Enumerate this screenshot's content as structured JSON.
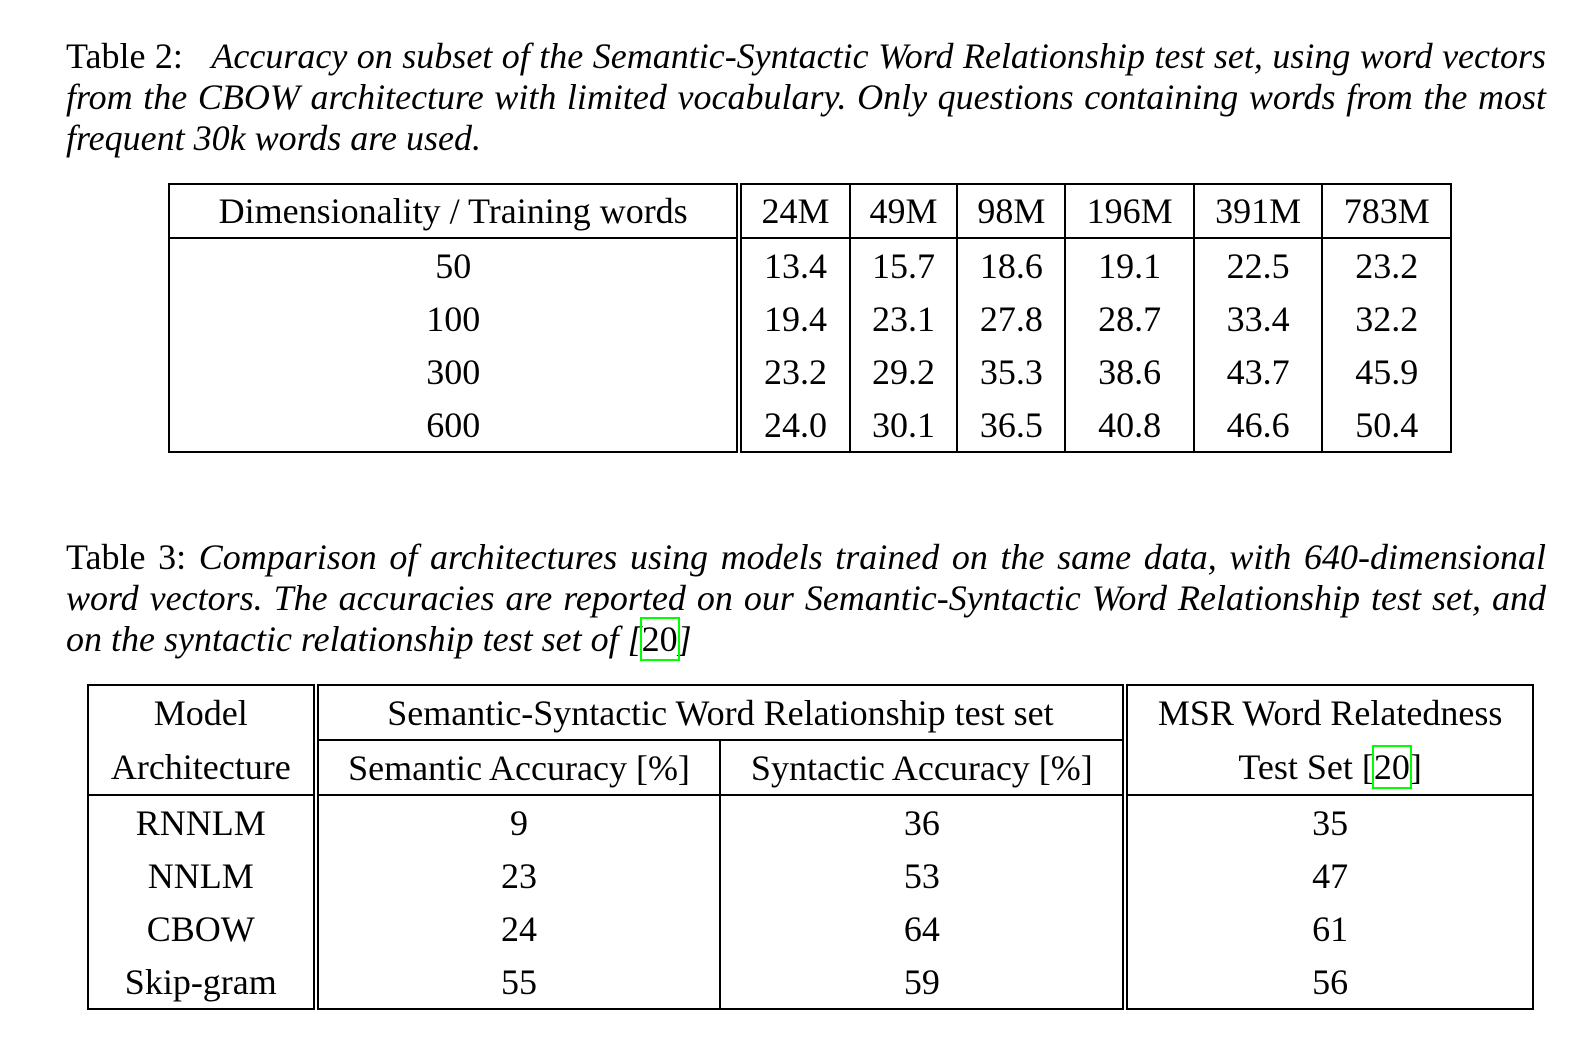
{
  "table2": {
    "caption_label": "Table 2:",
    "caption_text": "Accuracy on subset of the Semantic-Syntactic Word Relationship test set, using word vectors from the CBOW architecture with limited vocabulary. Only questions containing words from the most frequent 30k words are used.",
    "header": [
      "Dimensionality / Training words",
      "24M",
      "49M",
      "98M",
      "196M",
      "391M",
      "783M"
    ],
    "rows": [
      [
        "50",
        "13.4",
        "15.7",
        "18.6",
        "19.1",
        "22.5",
        "23.2"
      ],
      [
        "100",
        "19.4",
        "23.1",
        "27.8",
        "28.7",
        "33.4",
        "32.2"
      ],
      [
        "300",
        "23.2",
        "29.2",
        "35.3",
        "38.6",
        "43.7",
        "45.9"
      ],
      [
        "600",
        "24.0",
        "30.1",
        "36.5",
        "40.8",
        "46.6",
        "50.4"
      ]
    ]
  },
  "table3": {
    "caption_label": "Table 3:",
    "caption_text_before": "Comparison of architectures using models trained on the same data, with 640-dimensional word vectors. The accuracies are reported on our Semantic-Syntactic Word Relationship test set, and on the syntactic relationship test set of [",
    "caption_cite": "20",
    "caption_text_after": "]",
    "header": {
      "model_line1": "Model",
      "model_line2": "Architecture",
      "group": "Semantic-Syntactic Word Relationship test set",
      "semantic": "Semantic Accuracy [%]",
      "syntactic": "Syntactic Accuracy [%]",
      "msr_line1": "MSR Word Relatedness",
      "msr_line2_before": "Test Set [",
      "msr_cite": "20",
      "msr_line2_after": "]"
    },
    "rows": [
      [
        "RNNLM",
        "9",
        "36",
        "35"
      ],
      [
        "NNLM",
        "23",
        "53",
        "47"
      ],
      [
        "CBOW",
        "24",
        "64",
        "61"
      ],
      [
        "Skip-gram",
        "55",
        "59",
        "56"
      ]
    ]
  }
}
